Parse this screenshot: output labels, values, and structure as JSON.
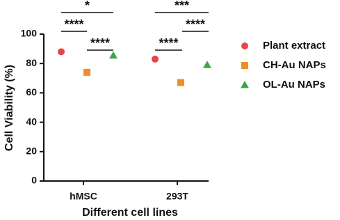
{
  "chart_data": {
    "type": "scatter",
    "xlabel": "Different cell lines",
    "ylabel": "Cell Viability (%)",
    "categories": [
      "hMSC",
      "293T"
    ],
    "ylim": [
      0,
      100
    ],
    "yticks": [
      0,
      20,
      40,
      60,
      80,
      100
    ],
    "series": [
      {
        "name": "Plant extract",
        "color": "#e8434a",
        "marker": "circle",
        "values": [
          88,
          83
        ]
      },
      {
        "name": "CH-Au NAPs",
        "color": "#f28c28",
        "marker": "square",
        "values": [
          74,
          67
        ]
      },
      {
        "name": "OL-Au NAPs",
        "color": "#3aa54a",
        "marker": "triangle",
        "values": [
          85.5,
          79
        ]
      }
    ],
    "annotations": [
      "*",
      "****",
      "****",
      "***",
      "****",
      "****"
    ]
  }
}
